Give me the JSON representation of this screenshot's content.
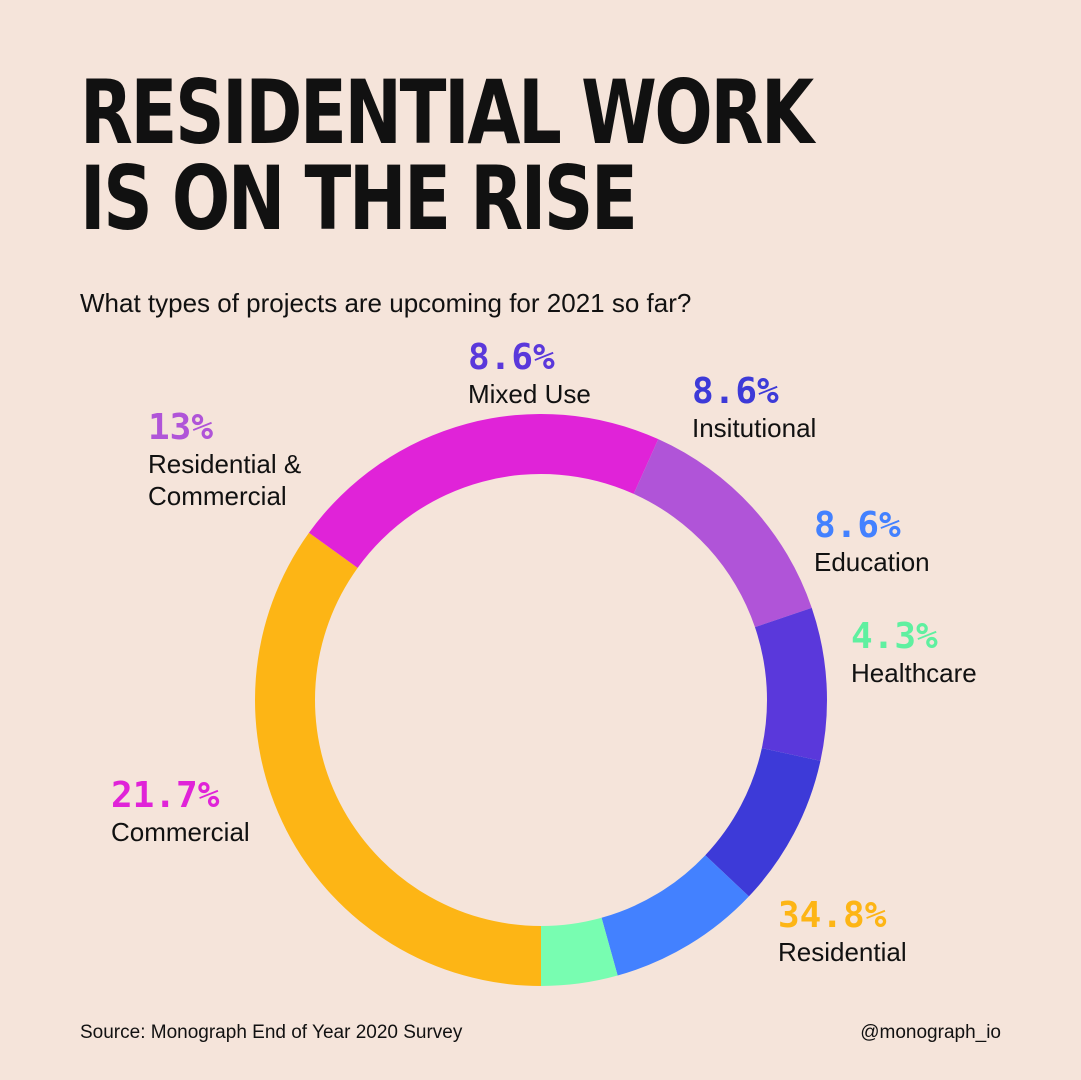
{
  "title_lines": [
    "RESIDENTIAL WORK",
    "IS ON THE RISE"
  ],
  "subtitle": "What types of projects are upcoming for 2021 so far?",
  "chart_data": {
    "type": "pie",
    "donut": true,
    "start_angle_deg": 90,
    "direction": "clockwise",
    "slices": [
      {
        "label": "Residential",
        "value": 34.8,
        "pct_label": "34.8%",
        "color": "#fdb515"
      },
      {
        "label": "Commercial",
        "value": 21.7,
        "pct_label": "21.7%",
        "color": "#e023d8"
      },
      {
        "label": "Residential &\nCommercial",
        "value": 13,
        "pct_label": "13%",
        "color": "#b054d8"
      },
      {
        "label": "Mixed Use",
        "value": 8.6,
        "pct_label": "8.6%",
        "color": "#5a38db"
      },
      {
        "label": "Insitutional",
        "value": 8.6,
        "pct_label": "8.6%",
        "color": "#3d3ad8"
      },
      {
        "label": "Education",
        "value": 8.6,
        "pct_label": "8.6%",
        "color": "#4381ff"
      },
      {
        "label": "Healthcare",
        "value": 4.3,
        "pct_label": "4.3%",
        "color": "#78fdb1"
      }
    ],
    "label_colors": {
      "Residential": "#fdb515",
      "Commercial": "#e023d8",
      "Residential &\nCommercial": "#b054d8",
      "Mixed Use": "#5a38db",
      "Insitutional": "#3d3ad8",
      "Education": "#4381ff",
      "Healthcare": "#5ff0a0"
    }
  },
  "footer": {
    "source": "Source: Monograph End of Year 2020 Survey",
    "handle": "@monograph_io"
  }
}
